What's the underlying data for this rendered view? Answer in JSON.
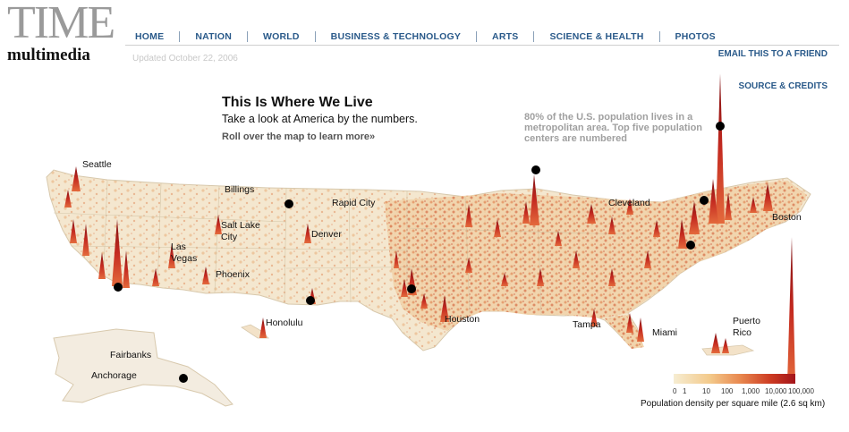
{
  "header": {
    "logo_time": "TIME",
    "logo_multimedia": "multimedia",
    "updated": "Updated October 22, 2006",
    "nav": [
      "HOME",
      "NATION",
      "WORLD",
      "BUSINESS & TECHNOLOGY",
      "ARTS",
      "SCIENCE & HEALTH",
      "PHOTOS"
    ],
    "email_link": "EMAIL THIS TO A FRIEND",
    "source_link": "SOURCE & CREDITS"
  },
  "intro": {
    "title": "This Is Where We Live",
    "subtitle": "Take a look at America by the numbers.",
    "rollover": "Roll over the map to learn more»"
  },
  "note": "80% of the U.S. population lives in a metropolitan area. Top five population centers are numbered",
  "cities": {
    "seattle": "Seattle",
    "billings": "Billings",
    "rapid_city": "Rapid City",
    "salt_lake_city": "Salt Lake City",
    "denver": "Denver",
    "las_vegas": "Las Vegas",
    "phoenix": "Phoenix",
    "cleveland": "Cleveland",
    "boston": "Boston",
    "houston": "Houston",
    "tampa": "Tampa",
    "miami": "Miami",
    "honolulu": "Honolulu",
    "puerto_rico": "Puerto Rico",
    "fairbanks": "Fairbanks",
    "anchorage": "Anchorage"
  },
  "legend": {
    "ticks": [
      "0",
      "1",
      "10",
      "100",
      "1,000",
      "10,000",
      "100,000"
    ],
    "caption": "Population density per square mile (2.6 sq km)",
    "colors": [
      "#f6edd2",
      "#f3c98a",
      "#e8874e",
      "#cc3a22",
      "#a3141a"
    ]
  },
  "colors": {
    "nav_link": "#2a5a8a",
    "land": "#f3ead8",
    "spike": "#b01a1a"
  }
}
